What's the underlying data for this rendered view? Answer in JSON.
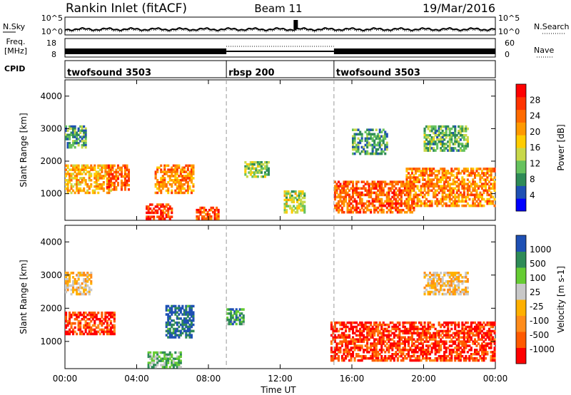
{
  "header": {
    "title": "Rankin Inlet (fitACF)",
    "beam": "Beam 11",
    "date": "19/Mar/2016"
  },
  "noise_panel": {
    "left_label": "N.Sky",
    "left_ticks": [
      "10^5",
      "10^0"
    ],
    "right_ticks": [
      "10^5",
      "10^0"
    ],
    "right_label": "N.Search"
  },
  "freq_panel": {
    "left_label_line1": "Freq.",
    "left_label_line2": "[MHz]",
    "left_ticks": [
      "18",
      "8"
    ],
    "right_ticks": [
      "60",
      "0"
    ],
    "right_label": "Nave"
  },
  "cpid_panel": {
    "label": "CPID",
    "segments": [
      {
        "name": "twofsound 3503",
        "start_hour": 0,
        "end_hour": 9
      },
      {
        "name": "rbsp 200",
        "start_hour": 9,
        "end_hour": 15
      },
      {
        "name": "twofsound 3503",
        "start_hour": 15,
        "end_hour": 24
      }
    ]
  },
  "x_axis": {
    "label": "Time UT",
    "tick_labels": [
      "00:00",
      "04:00",
      "08:00",
      "12:00",
      "16:00",
      "20:00",
      "00:00"
    ],
    "range_hours": [
      0,
      24
    ]
  },
  "chart_data": [
    {
      "type": "heatmap",
      "title": "",
      "ylabel": "Slant Range [km]",
      "ylim": [
        180,
        4500
      ],
      "y_tick_labels": [
        "1000",
        "2000",
        "3000",
        "4000"
      ],
      "colorbar_label": "Power [dB]",
      "colorbar_ticks": [
        "28",
        "24",
        "20",
        "16",
        "12",
        "8",
        "4"
      ],
      "colors": [
        "#0000ff",
        "#1e50b4",
        "#2e8b57",
        "#66c25e",
        "#c8d84a",
        "#ffcc00",
        "#ff9900",
        "#ff6a00",
        "#ff3300",
        "#ff0000"
      ],
      "regions": [
        {
          "t": [
            0.0,
            2.6
          ],
          "r": [
            1000,
            1900
          ],
          "level": 0.62
        },
        {
          "t": [
            0.0,
            1.2
          ],
          "r": [
            2400,
            3100
          ],
          "level": 0.3
        },
        {
          "t": [
            2.3,
            3.6
          ],
          "r": [
            1100,
            1900
          ],
          "level": 0.75
        },
        {
          "t": [
            5.0,
            7.2
          ],
          "r": [
            1000,
            1900
          ],
          "level": 0.7
        },
        {
          "t": [
            4.5,
            6.0
          ],
          "r": [
            200,
            700
          ],
          "level": 0.85
        },
        {
          "t": [
            7.3,
            8.6
          ],
          "r": [
            200,
            600
          ],
          "level": 0.8
        },
        {
          "t": [
            10.0,
            11.4
          ],
          "r": [
            1500,
            2000
          ],
          "level": 0.4
        },
        {
          "t": [
            12.2,
            13.4
          ],
          "r": [
            400,
            1100
          ],
          "level": 0.45
        },
        {
          "t": [
            15.0,
            19.5
          ],
          "r": [
            400,
            1400
          ],
          "level": 0.78
        },
        {
          "t": [
            19.0,
            24.0
          ],
          "r": [
            600,
            1800
          ],
          "level": 0.7
        },
        {
          "t": [
            16.0,
            18.0
          ],
          "r": [
            2200,
            3000
          ],
          "level": 0.3
        },
        {
          "t": [
            20.0,
            22.5
          ],
          "r": [
            2300,
            3100
          ],
          "level": 0.35
        }
      ]
    },
    {
      "type": "heatmap",
      "title": "",
      "ylabel": "Slant Range [km]",
      "ylim": [
        180,
        4500
      ],
      "y_tick_labels": [
        "1000",
        "2000",
        "3000",
        "4000"
      ],
      "colorbar_label": "Velocity [m s-1]",
      "colorbar_ticks": [
        "1000",
        "500",
        "100",
        "25",
        "-25",
        "-100",
        "-500",
        "-1000"
      ],
      "colors": [
        "#ff0000",
        "#ff5a00",
        "#ff8c1a",
        "#ffb000",
        "#c8c8c8",
        "#66cc33",
        "#2e8b57",
        "#1e50b4"
      ],
      "regions": [
        {
          "t": [
            0.0,
            2.8
          ],
          "r": [
            1200,
            1900
          ],
          "level": 0.15,
          "class": "neg"
        },
        {
          "t": [
            0.0,
            1.5
          ],
          "r": [
            2400,
            3100
          ],
          "level": 0.45,
          "class": "ground"
        },
        {
          "t": [
            5.6,
            7.2
          ],
          "r": [
            1100,
            2100
          ],
          "level": 0.92,
          "class": "pos"
        },
        {
          "t": [
            4.6,
            6.5
          ],
          "r": [
            200,
            700
          ],
          "level": 0.68,
          "class": "pos"
        },
        {
          "t": [
            9.0,
            10.0
          ],
          "r": [
            1500,
            2000
          ],
          "level": 0.78,
          "class": "pos"
        },
        {
          "t": [
            14.8,
            24.0
          ],
          "r": [
            400,
            1600
          ],
          "level": 0.12,
          "class": "neg"
        },
        {
          "t": [
            20.0,
            22.5
          ],
          "r": [
            2400,
            3100
          ],
          "level": 0.45,
          "class": "ground"
        }
      ]
    }
  ]
}
